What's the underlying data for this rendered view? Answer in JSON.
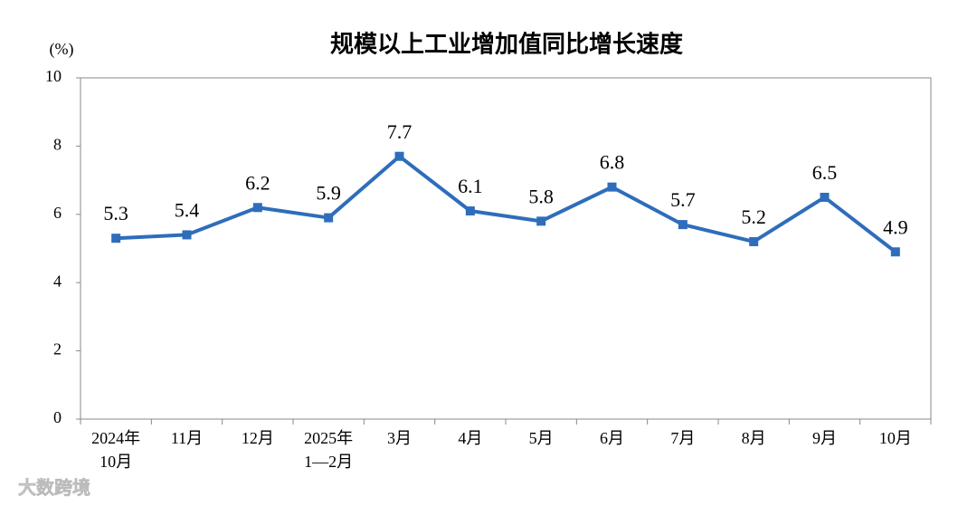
{
  "chart_data": {
    "type": "line",
    "title": "规模以上工业增加值同比增长速度",
    "y_label": "(%)",
    "categories": [
      "2024年\n10月",
      "11月",
      "12月",
      "2025年\n1—2月",
      "3月",
      "4月",
      "5月",
      "6月",
      "7月",
      "8月",
      "9月",
      "10月"
    ],
    "values": [
      5.3,
      5.4,
      6.2,
      5.9,
      7.7,
      6.1,
      5.8,
      6.8,
      5.7,
      5.2,
      6.5,
      4.9
    ],
    "color": "#2e6dbb",
    "ylim": [
      0,
      10
    ],
    "yticks": [
      0,
      2,
      4,
      6,
      8,
      10
    ],
    "grid": false,
    "watermark": "大数跨境"
  }
}
